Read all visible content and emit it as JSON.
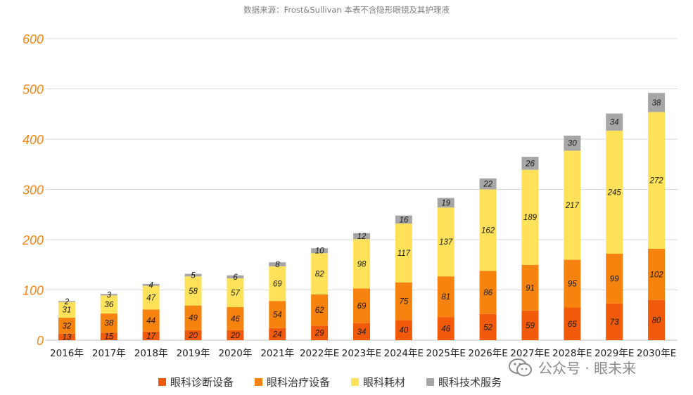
{
  "source_note": "数据来源：Frost&Sullivan  本表不含隐形眼镜及其护理液",
  "watermark": {
    "icon": "wechat-icon",
    "text": "公众号 · 眼未来"
  },
  "chart_data": {
    "type": "bar",
    "stacked": true,
    "title": "",
    "xlabel": "",
    "ylabel": "",
    "ylim": [
      0,
      600
    ],
    "yticks": [
      "0",
      "100",
      "200",
      "300",
      "400",
      "500",
      "600"
    ],
    "grid": true,
    "legend_position": "bottom",
    "categories": [
      "2016年",
      "2017年",
      "2018年",
      "2019年",
      "2020年",
      "2021年",
      "2022年E",
      "2023年E",
      "2024年E",
      "2025年E",
      "2026年E",
      "2027年E",
      "2028年E",
      "2029年E",
      "2030年E"
    ],
    "series": [
      {
        "name": "眼科诊断设备",
        "color": "#f05a0a",
        "values": [
          13,
          15,
          17,
          20,
          20,
          24,
          29,
          34,
          40,
          46,
          52,
          59,
          65,
          73,
          80
        ]
      },
      {
        "name": "眼科治疗设备",
        "color": "#f7830f",
        "values": [
          32,
          38,
          44,
          49,
          46,
          54,
          62,
          69,
          75,
          81,
          86,
          91,
          95,
          99,
          102
        ]
      },
      {
        "name": "眼科耗材",
        "color": "#ffe259",
        "values": [
          31,
          36,
          47,
          58,
          57,
          69,
          82,
          98,
          117,
          137,
          162,
          189,
          217,
          245,
          272
        ]
      },
      {
        "name": "眼科技术服务",
        "color": "#a6a6a6",
        "values": [
          2,
          3,
          4,
          5,
          6,
          8,
          10,
          12,
          16,
          19,
          22,
          26,
          30,
          34,
          38
        ]
      }
    ],
    "tick_color": "#f7830f",
    "grid_color": "#d9d9d9"
  }
}
